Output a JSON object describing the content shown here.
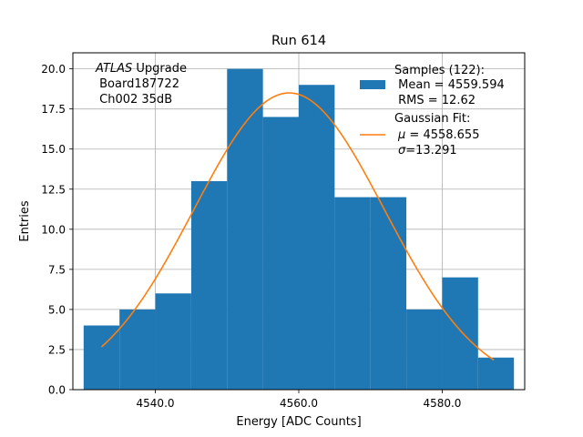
{
  "chart_data": {
    "type": "bar",
    "title": "Run 614",
    "xlabel": "Energy [ADC Counts]",
    "ylabel": "Entries",
    "xlim": [
      4528.5,
      4591.5
    ],
    "ylim": [
      0,
      21
    ],
    "grid": true,
    "x_ticks": [
      4540,
      4560,
      4580
    ],
    "x_tick_labels": [
      "4540.0",
      "4560.0",
      "4580.0"
    ],
    "y_ticks": [
      0,
      2.5,
      5,
      7.5,
      10,
      12.5,
      15,
      17.5,
      20
    ],
    "y_tick_labels": [
      "0.0",
      "2.5",
      "5.0",
      "7.5",
      "10.0",
      "12.5",
      "15.0",
      "17.5",
      "20.0"
    ],
    "bin_edges": [
      4530,
      4535,
      4540,
      4545,
      4550,
      4555,
      4560,
      4565,
      4570,
      4575,
      4580,
      4585,
      4590
    ],
    "counts": [
      4,
      5,
      6,
      13,
      20,
      17,
      19,
      12,
      12,
      5,
      7,
      2
    ],
    "bar_color": "#1f77b4",
    "fit": {
      "mu": 4558.655,
      "sigma": 13.291,
      "amplitude": 18.5,
      "x_range": [
        4532.5,
        4587.2
      ],
      "color": "#ff7f0e"
    },
    "annotation": {
      "line1_italic": "ATLAS",
      "line1_rest": " Upgrade",
      "line2": " Board187722",
      "line3": " Ch002 35dB"
    },
    "legend": {
      "position": "top-right",
      "samples_title": "Samples (122):",
      "samples_mean": " Mean = 4559.594",
      "samples_rms": " RMS = 12.62",
      "fit_title": "Gaussian Fit:",
      "fit_mu_symbol": "μ",
      "fit_mu_rest": " = 4558.655",
      "fit_sigma_symbol": "σ",
      "fit_sigma_rest": "=13.291"
    }
  }
}
